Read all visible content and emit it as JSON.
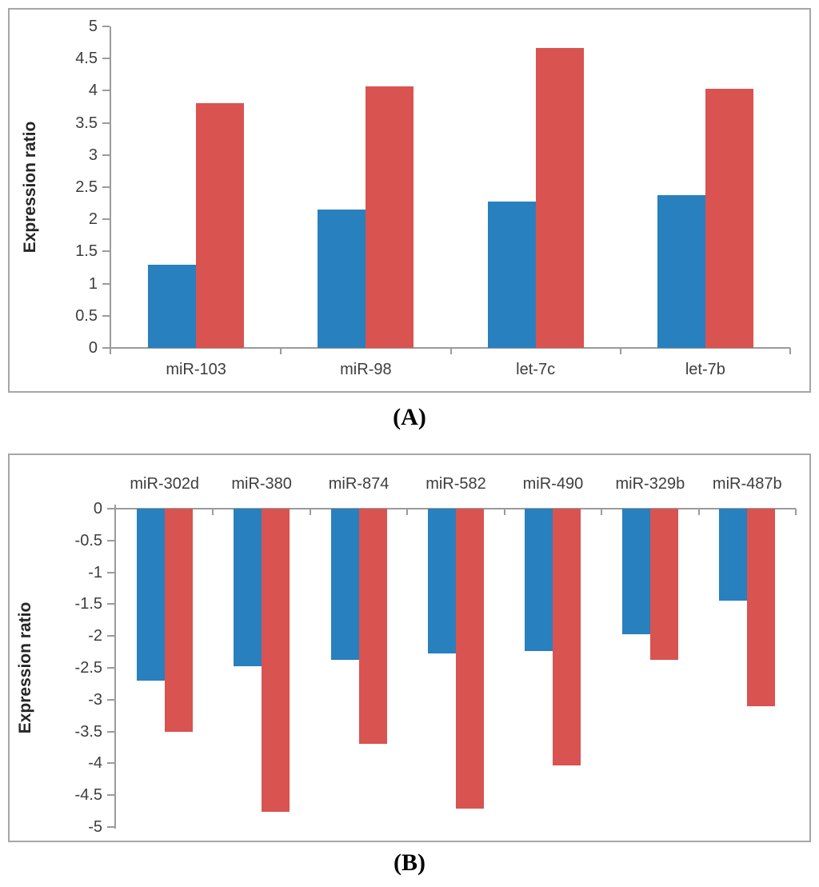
{
  "figure": {
    "caption_a": "(A)",
    "caption_b": "(B)"
  },
  "colors": {
    "series_blue": "#2880BE",
    "series_red": "#D95351",
    "axis": "#9B9B9B",
    "text": "#3D3D3D",
    "panel_border": "#A6A6A6"
  },
  "chart_data": [
    {
      "id": "A",
      "type": "bar",
      "title": "",
      "xlabel": "",
      "ylabel": "Expression ratio",
      "categories": [
        "miR-103",
        "miR-98",
        "let-7c",
        "let-7b"
      ],
      "series": [
        {
          "name": "blue",
          "color_key": "series_blue",
          "values": [
            1.29,
            2.15,
            2.28,
            2.38
          ]
        },
        {
          "name": "red",
          "color_key": "series_red",
          "values": [
            3.81,
            4.07,
            4.66,
            4.03
          ]
        }
      ],
      "ylim": [
        0,
        5
      ],
      "ytick_step": 0.5,
      "yticks": [
        "5",
        "4.5",
        "4",
        "3.5",
        "3",
        "2.5",
        "2",
        "1.5",
        "1",
        "0.5",
        "0"
      ],
      "grid": false,
      "legend": false,
      "category_label_position": "below-axis"
    },
    {
      "id": "B",
      "type": "bar",
      "title": "",
      "xlabel": "",
      "ylabel": "Expression ratio",
      "categories": [
        "miR-302d",
        "miR-380",
        "miR-874",
        "miR-582",
        "miR-490",
        "miR-329b",
        "miR-487b"
      ],
      "series": [
        {
          "name": "blue",
          "color_key": "series_blue",
          "values": [
            -2.7,
            -2.47,
            -2.37,
            -2.28,
            -2.23,
            -1.97,
            -1.45
          ]
        },
        {
          "name": "red",
          "color_key": "series_red",
          "values": [
            -3.5,
            -4.76,
            -3.69,
            -4.71,
            -4.03,
            -2.37,
            -3.1
          ]
        }
      ],
      "ylim": [
        -5,
        0
      ],
      "ytick_step": 0.5,
      "yticks": [
        "0",
        "-0.5",
        "-1",
        "-1.5",
        "-2",
        "-2.5",
        "-3",
        "-3.5",
        "-4",
        "-4.5",
        "-5"
      ],
      "grid": false,
      "legend": false,
      "category_label_position": "above-axis"
    }
  ]
}
